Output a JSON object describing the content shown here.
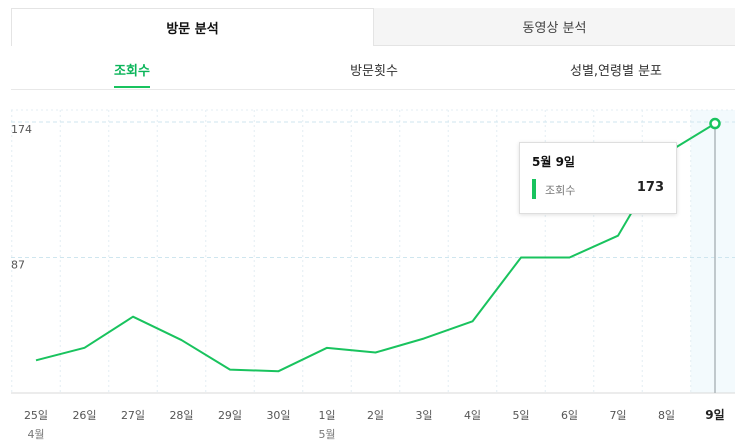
{
  "top_tabs": [
    {
      "label": "방문 분석",
      "active": true
    },
    {
      "label": "동영상 분석",
      "active": false
    }
  ],
  "sub_tabs": [
    {
      "label": "조회수",
      "active": true
    },
    {
      "label": "방문횟수",
      "active": false
    },
    {
      "label": "성별,연령별 분포",
      "active": false
    }
  ],
  "tooltip": {
    "title": "5월 9일",
    "series_label": "조회수",
    "value": "173"
  },
  "chart_data": {
    "type": "line",
    "categories": [
      "25일",
      "26일",
      "27일",
      "28일",
      "29일",
      "30일",
      "1일",
      "2일",
      "3일",
      "4일",
      "5일",
      "6일",
      "7일",
      "8일",
      "9일"
    ],
    "month_labels": [
      {
        "index": 0,
        "label": "4월"
      },
      {
        "index": 6,
        "label": "5월"
      }
    ],
    "y_ticks": [
      87,
      174
    ],
    "ylim": [
      0,
      174
    ],
    "series": [
      {
        "values": [
          21,
          29,
          49,
          34,
          15,
          14,
          29,
          26,
          35,
          46,
          87,
          87,
          101,
          154,
          173
        ]
      }
    ],
    "highlight_index": 14,
    "colors": {
      "line": "#19c35e",
      "grid": "#cfe6ef",
      "highlight_bg": "#f3fafd"
    },
    "title": "",
    "xlabel": "",
    "ylabel": ""
  }
}
